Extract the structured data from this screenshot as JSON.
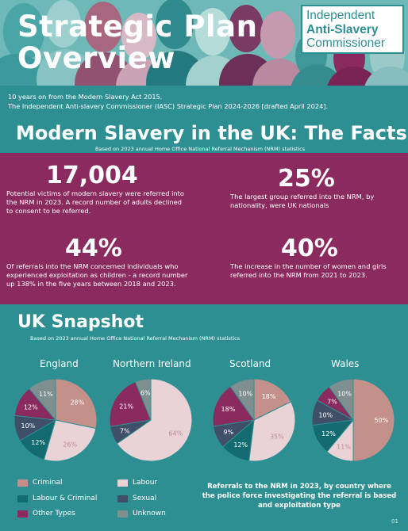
{
  "header": {
    "title_line1": "Strategic Plan",
    "title_line2": "Overview",
    "logo_line1": "Independent",
    "logo_line2": "Anti-Slavery",
    "logo_line3": "Commissioner"
  },
  "intro": {
    "line1": "10 years on from the Modern Slavery Act 2015.",
    "line2": "The Independent Anti-slavery Commissioner (IASC) Strategic Plan 2024-2026 [drafted April 2024]."
  },
  "facts": {
    "heading": "Modern Slavery in the UK: The Facts",
    "subtitle": "Based on 2023 annual Home Office National Referral Mechanism (NRM) statistics",
    "items": [
      {
        "number": "17,004",
        "lines": [
          "Potential victims of modern slavery were referred into",
          "the NRM in 2023.   A record number of adults declined",
          "to consent to be referred."
        ]
      },
      {
        "number": "25%",
        "lines": [
          "The largest group referred into the NRM, by",
          "nationality, were UK nationals"
        ]
      },
      {
        "number": "44%",
        "lines": [
          "Of referrals into the NRM concerned individuals who",
          "experienced exploitation as children - a record number",
          "up 138% in the five years between 2018 and 2023."
        ]
      },
      {
        "number": "40%",
        "lines": [
          "The increase in the number of women and girls",
          "referred into the NRM from 2021 to 2023."
        ]
      }
    ]
  },
  "snapshot": {
    "heading": "UK Snapshot",
    "subtitle": "Based on 2023 annual Home Office National Referral Mechanism (NRM) statistics",
    "caption": "Referrals to the NRM in 2023, by country where the police force investigating the referral is based and exploitation type",
    "page_number": "01"
  },
  "legend": [
    {
      "label": "Criminal",
      "color": "#c4918a"
    },
    {
      "label": "Labour",
      "color": "#ead3d6"
    },
    {
      "label": "Labour & Criminal",
      "color": "#146b6f"
    },
    {
      "label": "Sexual",
      "color": "#3f4f68"
    },
    {
      "label": "Other Types",
      "color": "#8a2a5e"
    },
    {
      "label": "Unknown",
      "color": "#7e8f8f"
    }
  ],
  "chart_data": {
    "type": "pie",
    "categories": [
      "Criminal",
      "Labour",
      "Labour & Criminal",
      "Sexual",
      "Other Types",
      "Unknown"
    ],
    "charts": [
      {
        "name": "England",
        "values": [
          28,
          26,
          12,
          10,
          12,
          11
        ],
        "labels": [
          "28%",
          "26%",
          "12%",
          "10%",
          "12%",
          "11%"
        ]
      },
      {
        "name": "Northern Ireland",
        "values": [
          0,
          64,
          0,
          7,
          21,
          6
        ],
        "labels": [
          "",
          "64%",
          "",
          "7%",
          "21%",
          "6%"
        ]
      },
      {
        "name": "Scotland",
        "values": [
          18,
          35,
          12,
          9,
          18,
          10
        ],
        "labels": [
          "18%",
          "35%",
          "12%",
          "9%",
          "18%",
          "10%"
        ]
      },
      {
        "name": "Wales",
        "values": [
          50,
          11,
          12,
          10,
          7,
          10
        ],
        "labels": [
          "50%",
          "11%",
          "12%",
          "10%",
          "7%",
          "10%"
        ]
      }
    ]
  }
}
